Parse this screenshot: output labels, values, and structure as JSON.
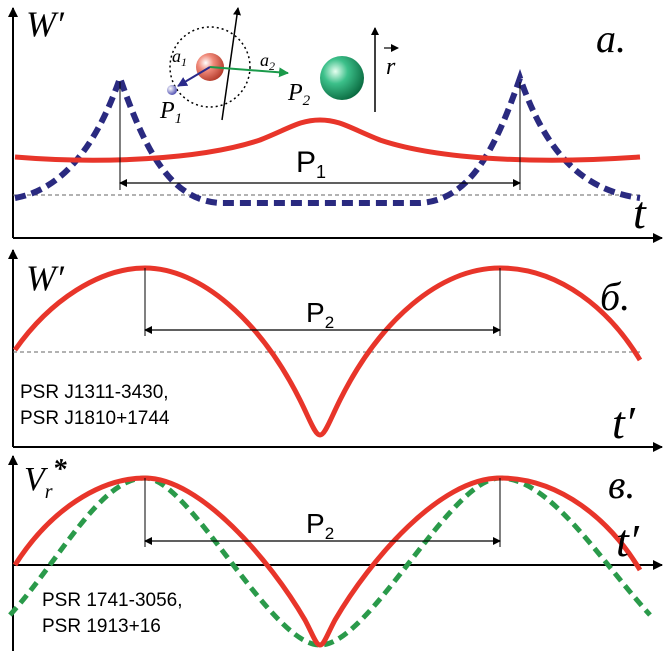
{
  "panel_a": {
    "letter": "а.",
    "y_axis": "W′",
    "x_axis": "t",
    "a1": {
      "main": "a",
      "sub": "1"
    },
    "a2": {
      "main": "a",
      "sub": "2"
    },
    "body1": {
      "main": "P",
      "sub": "1"
    },
    "body2": {
      "main": "P",
      "sub": "2"
    },
    "vector": "r",
    "period": {
      "main": "P",
      "sub": "1"
    }
  },
  "panel_b": {
    "letter": "б.",
    "y_axis": "W′",
    "x_axis": "t′",
    "period": {
      "main": "P",
      "sub": "2"
    },
    "pulsars": [
      "PSR J1311-3430,",
      "PSR J1810+1744"
    ]
  },
  "panel_c": {
    "letter": "в.",
    "y_axis": {
      "main": "V",
      "sub": "r",
      "sup": "*"
    },
    "x_axis": "t′",
    "period": {
      "main": "P",
      "sub": "2"
    },
    "pulsars": [
      "PSR 1741-3056,",
      "PSR 1913+16"
    ]
  }
}
